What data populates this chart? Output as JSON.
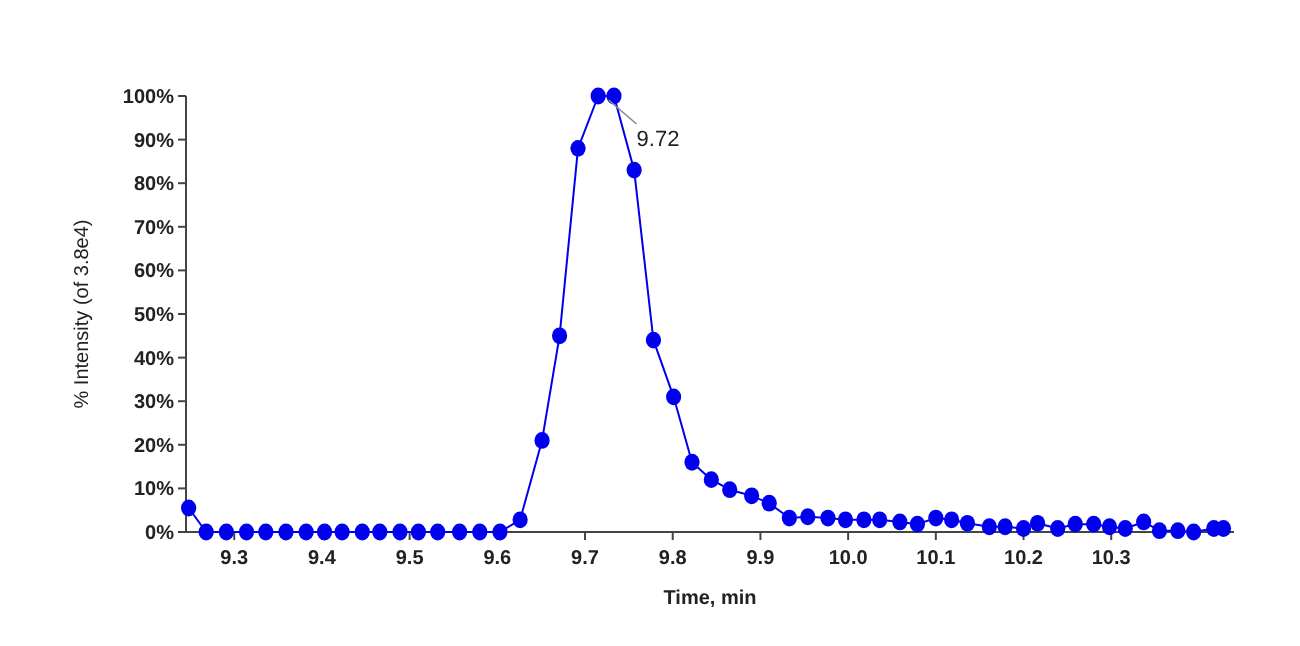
{
  "chart_data": {
    "type": "line",
    "xlabel": "Time, min",
    "ylabel": "% Intensity (of 3.8e4)",
    "xlim": [
      9.245,
      10.44
    ],
    "xticks": [
      9.3,
      9.4,
      9.5,
      9.6,
      9.7,
      9.8,
      9.9,
      {
        "value": 10,
        "label": "10.0"
      },
      10.1,
      10.2,
      10.3
    ],
    "ylim": [
      0,
      100
    ],
    "yticks": [
      {
        "value": 0,
        "label": "0%"
      },
      {
        "value": 10,
        "label": "10%"
      },
      {
        "value": 20,
        "label": "20%"
      },
      {
        "value": 30,
        "label": "30%"
      },
      {
        "value": 40,
        "label": "40%"
      },
      {
        "value": 50,
        "label": "50%"
      },
      {
        "value": 60,
        "label": "60%"
      },
      {
        "value": 70,
        "label": "70%"
      },
      {
        "value": 80,
        "label": "80%"
      },
      {
        "value": 90,
        "label": "90%"
      },
      {
        "value": 100,
        "label": "100%"
      }
    ],
    "grid": false,
    "marker": "circle",
    "line_style": "solid",
    "annotations": [
      {
        "text": "9.72",
        "x": 9.72,
        "y": 100
      }
    ],
    "series": [
      {
        "color": "#0000ee",
        "x": [
          9.248,
          9.268,
          9.291,
          9.314,
          9.336,
          9.359,
          9.382,
          9.403,
          9.423,
          9.446,
          9.466,
          9.489,
          9.51,
          9.532,
          9.557,
          9.58,
          9.603,
          9.626,
          9.651,
          9.671,
          9.692,
          9.715,
          9.733,
          9.756,
          9.778,
          9.801,
          9.822,
          9.844,
          9.865,
          9.89,
          9.91,
          9.933,
          9.954,
          9.977,
          9.997,
          10.018,
          10.036,
          10.059,
          10.079,
          10.1,
          10.118,
          10.136,
          10.161,
          10.179,
          10.2,
          10.216,
          10.239,
          10.259,
          10.28,
          10.298,
          10.316,
          10.337,
          10.355,
          10.376,
          10.394,
          10.417,
          10.428
        ],
        "values": [
          5.5,
          0,
          0,
          0,
          0,
          0,
          0,
          0,
          0,
          0,
          0,
          0,
          0,
          0,
          0,
          0,
          0,
          2.8,
          21,
          45,
          88,
          100,
          100,
          83,
          44,
          31,
          16,
          12,
          9.7,
          8.3,
          6.6,
          3.2,
          3.5,
          3.2,
          2.8,
          2.8,
          2.8,
          2.3,
          1.8,
          3.2,
          2.8,
          2,
          1.2,
          1.2,
          0.8,
          2,
          0.8,
          1.8,
          1.8,
          1.2,
          0.8,
          2.3,
          0.3,
          0.3,
          0,
          0.8,
          0.8
        ]
      }
    ]
  }
}
